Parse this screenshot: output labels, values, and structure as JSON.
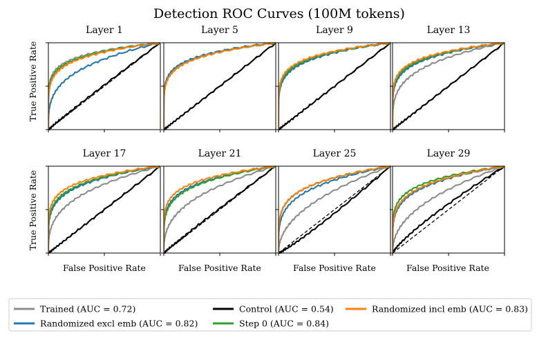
{
  "chart_data": {
    "type": "line",
    "title": "Detection ROC Curves (100M tokens)",
    "xlabel": "False Positive Rate",
    "ylabel": "True Positive Rate",
    "xlim": [
      0,
      1
    ],
    "ylim": [
      0,
      1
    ],
    "series_info": [
      {
        "key": "trained",
        "name": "Trained",
        "auc": 0.72,
        "label": "Trained (AUC = 0.72)",
        "color": "#8c8c8c"
      },
      {
        "key": "control",
        "name": "Control",
        "auc": 0.54,
        "label": "Control (AUC = 0.54)",
        "color": "#000000"
      },
      {
        "key": "rand_incl",
        "name": "Randomized incl emb",
        "auc": 0.83,
        "label": "Randomized incl emb (AUC = 0.83)",
        "color": "#ff7f0e"
      },
      {
        "key": "rand_excl",
        "name": "Randomized excl emb",
        "auc": 0.82,
        "label": "Randomized excl emb (AUC = 0.82)",
        "color": "#1f77b4"
      },
      {
        "key": "step0",
        "name": "Step 0",
        "auc": 0.84,
        "label": "Step 0 (AUC = 0.84)",
        "color": "#2ca02c"
      }
    ],
    "panels": [
      {
        "title": "Layer 1",
        "series": {
          "trained": 0.88,
          "rand_excl": 0.77,
          "step0": 0.87,
          "rand_incl": 0.86,
          "control": 0.51
        }
      },
      {
        "title": "Layer 5",
        "series": {
          "trained": 0.87,
          "rand_excl": 0.87,
          "step0": 0.86,
          "rand_incl": 0.86,
          "control": 0.5
        }
      },
      {
        "title": "Layer 9",
        "series": {
          "trained": 0.86,
          "rand_excl": 0.85,
          "step0": 0.86,
          "rand_incl": 0.87,
          "control": 0.5
        }
      },
      {
        "title": "Layer 13",
        "series": {
          "trained": 0.79,
          "rand_excl": 0.85,
          "step0": 0.86,
          "rand_incl": 0.87,
          "control": 0.5
        }
      },
      {
        "title": "Layer 17",
        "series": {
          "trained": 0.75,
          "rand_excl": 0.83,
          "step0": 0.84,
          "rand_incl": 0.86,
          "control": 0.5
        }
      },
      {
        "title": "Layer 21",
        "series": {
          "trained": 0.73,
          "rand_excl": 0.84,
          "step0": 0.83,
          "rand_incl": 0.86,
          "control": 0.51
        }
      },
      {
        "title": "Layer 25",
        "series": {
          "trained": 0.68,
          "rand_excl": 0.8,
          "step0": 0.83,
          "rand_incl": 0.83,
          "control": 0.47
        }
      },
      {
        "title": "Layer 29",
        "series": {
          "trained": 0.69,
          "rand_excl": 0.82,
          "step0": 0.85,
          "rand_incl": 0.83,
          "control": 0.55
        }
      }
    ],
    "chance_line": {
      "x": [
        0,
        1
      ],
      "y": [
        0,
        1
      ],
      "style": "dashed"
    },
    "grid": false,
    "legend": "bottom"
  }
}
